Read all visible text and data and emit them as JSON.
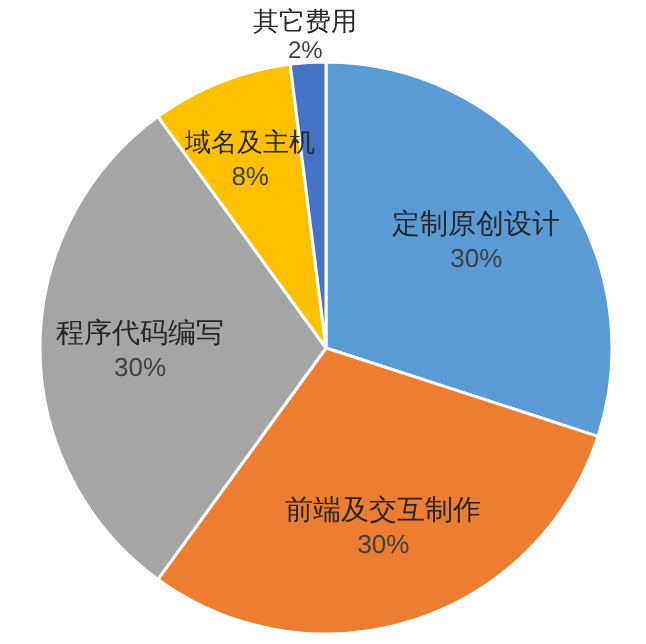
{
  "chart_data": {
    "type": "pie",
    "categories": [
      "定制原创设计",
      "前端及交互制作",
      "程序代码编写",
      "域名及主机",
      "其它费用"
    ],
    "values": [
      30,
      30,
      30,
      8,
      2
    ],
    "value_labels": [
      "30%",
      "30%",
      "30%",
      "8%",
      "2%"
    ],
    "colors": [
      "#5b9bd5",
      "#ed7d31",
      "#a5a5a5",
      "#ffc000",
      "#4472c4"
    ]
  }
}
